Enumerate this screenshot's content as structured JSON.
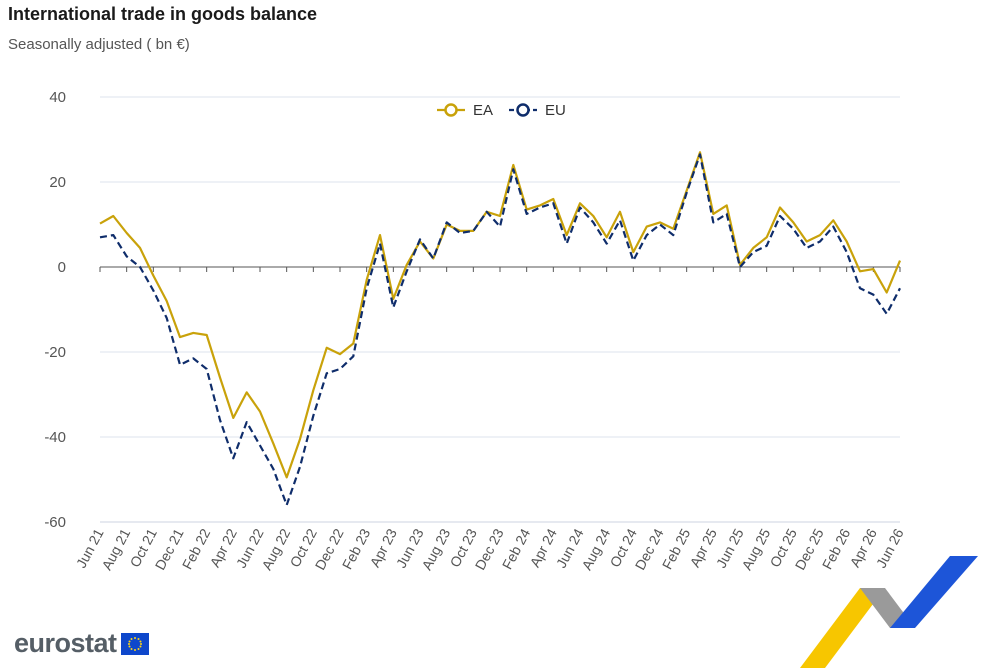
{
  "header": {
    "title": "International trade in goods balance",
    "subtitle": "Seasonally adjusted ( bn €)"
  },
  "footer": {
    "logo_text": "eurostat"
  },
  "chart_data": {
    "type": "line",
    "title": "International trade in goods balance",
    "subtitle": "Seasonally adjusted ( bn €)",
    "ylim": [
      -60,
      40
    ],
    "yticks": [
      40,
      20,
      0,
      -20,
      -40,
      -60
    ],
    "grid": true,
    "legend_position": "top-center",
    "x": [
      "Jun 21",
      "Jul 21",
      "Aug 21",
      "Sep 21",
      "Oct 21",
      "Nov 21",
      "Dec 21",
      "Jan 22",
      "Feb 22",
      "Mar 22",
      "Apr 22",
      "May 22",
      "Jun 22",
      "Jul 22",
      "Aug 22",
      "Sep 22",
      "Oct 22",
      "Nov 22",
      "Dec 22",
      "Jan 23",
      "Feb 23",
      "Mar 23",
      "Apr 23",
      "May 23",
      "Jun 23",
      "Jul 23",
      "Aug 23",
      "Sep 23",
      "Oct 23",
      "Nov 23",
      "Dec 23",
      "Jan 24",
      "Feb 24",
      "Mar 24",
      "Apr 24",
      "May 24",
      "Jun 24",
      "Jul 24",
      "Aug 24",
      "Sep 24",
      "Oct 24",
      "Nov 24",
      "Dec 24",
      "Jan 25",
      "Feb 25",
      "Mar 25",
      "Apr 25",
      "May 25",
      "Jun 25",
      "Jul 25",
      "Aug 25",
      "Sep 25",
      "Oct 25",
      "Nov 25",
      "Dec 25",
      "Jan 26",
      "Feb 26",
      "Mar 26",
      "Apr 26",
      "May 26",
      "Jun 26"
    ],
    "xtick_labels": [
      "Jun 21",
      "Aug 21",
      "Oct 21",
      "Dec 21",
      "Feb 22",
      "Apr 22",
      "Jun 22",
      "Aug 22",
      "Oct 22",
      "Dec 22",
      "Feb 23",
      "Apr 23",
      "Jun 23",
      "Aug 23",
      "Oct 23",
      "Dec 23",
      "Feb 24",
      "Apr 24",
      "Jun 24",
      "Aug 24",
      "Oct 24",
      "Dec 24",
      "Feb 25",
      "Apr 25",
      "Jun 25",
      "Aug 25",
      "Oct 25",
      "Dec 25",
      "Feb 26",
      "Apr 26",
      "Jun 26"
    ],
    "series": [
      {
        "name": "EA",
        "color": "#c9a20a",
        "dash": "solid",
        "values": [
          10.2,
          12.0,
          8.0,
          4.5,
          -2.0,
          -8.0,
          -16.5,
          -15.5,
          -16.0,
          -26.0,
          -35.5,
          -29.5,
          -34.0,
          -41.5,
          -49.5,
          -40.5,
          -29.0,
          -19.0,
          -20.5,
          -18.0,
          -3.0,
          7.5,
          -7.5,
          0.5,
          6.0,
          2.0,
          10.0,
          8.5,
          8.5,
          13.0,
          12.0,
          24.0,
          13.5,
          14.5,
          16.0,
          7.5,
          15.0,
          12.0,
          7.0,
          13.0,
          3.5,
          9.5,
          10.5,
          9.0,
          18.0,
          27.0,
          12.5,
          14.5,
          0.5,
          4.5,
          7.0,
          14.0,
          10.5,
          6.0,
          7.5,
          11.0,
          6.0,
          -1.0,
          -0.5,
          -6.0,
          1.5
        ]
      },
      {
        "name": "EU",
        "color": "#0f2d6b",
        "dash": "dashed",
        "values": [
          7.0,
          7.5,
          2.5,
          0.0,
          -5.5,
          -12.0,
          -23.0,
          -21.5,
          -24.0,
          -36.0,
          -45.0,
          -36.5,
          -42.0,
          -47.5,
          -56.0,
          -47.0,
          -35.0,
          -25.0,
          -24.0,
          -21.0,
          -5.0,
          5.5,
          -9.5,
          -1.0,
          6.5,
          2.0,
          10.5,
          8.0,
          8.5,
          13.0,
          9.5,
          23.0,
          12.5,
          14.0,
          15.0,
          5.5,
          14.0,
          10.5,
          5.5,
          11.0,
          1.5,
          7.5,
          10.0,
          7.5,
          17.5,
          26.5,
          10.5,
          12.5,
          0.0,
          3.5,
          5.0,
          12.0,
          9.0,
          4.5,
          6.0,
          9.5,
          3.5,
          -5.0,
          -6.5,
          -11.0,
          -5.0
        ]
      }
    ]
  }
}
